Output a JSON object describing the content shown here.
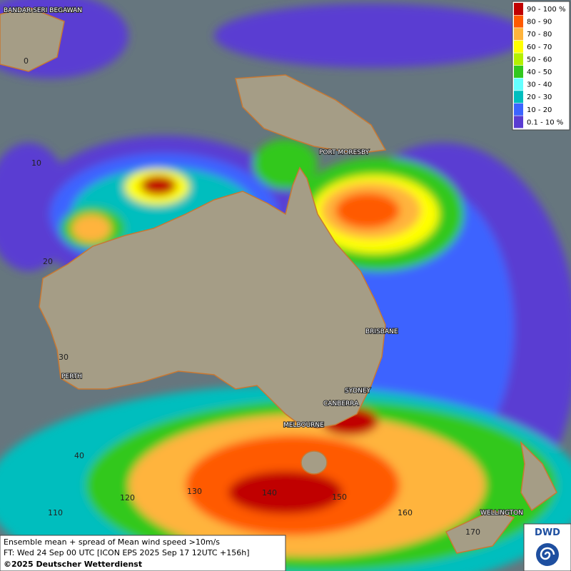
{
  "legend": [
    {
      "label": "90 - 100 %",
      "color": "#c00000"
    },
    {
      "label": "80 - 90",
      "color": "#ff5a00"
    },
    {
      "label": "70 - 80",
      "color": "#ffb43c"
    },
    {
      "label": "60 - 70",
      "color": "#ffff00"
    },
    {
      "label": "50 - 60",
      "color": "#b4f000"
    },
    {
      "label": "40 - 50",
      "color": "#32c81e"
    },
    {
      "label": "30 - 40",
      "color": "#64ffff"
    },
    {
      "label": "20 - 30",
      "color": "#00bebe"
    },
    {
      "label": "10 - 20",
      "color": "#3c64ff"
    },
    {
      "label": "0.1 - 10 %",
      "color": "#5a3cd2"
    }
  ],
  "cities": [
    "BANDAR SERI BEGAWAN",
    "PORT MORESBY",
    "BRISBANE",
    "PERTH",
    "SYDNEY",
    "CANBERRA",
    "MELBOURNE",
    "WELLINGTON"
  ],
  "latitude_labels": [
    "0",
    "10",
    "20",
    "30",
    "40"
  ],
  "longitude_labels": [
    "110",
    "120",
    "130",
    "140",
    "150",
    "160",
    "170"
  ],
  "footer": {
    "line1": "Ensemble mean + spread of Mean wind speed >10m/s",
    "line2": "FT: Wed 24 Sep 00 UTC [ICON EPS 2025 Sep 17 12UTC +156h]",
    "copyright": "©2025 Deutscher Wetterdienst"
  },
  "logo": "DWD"
}
